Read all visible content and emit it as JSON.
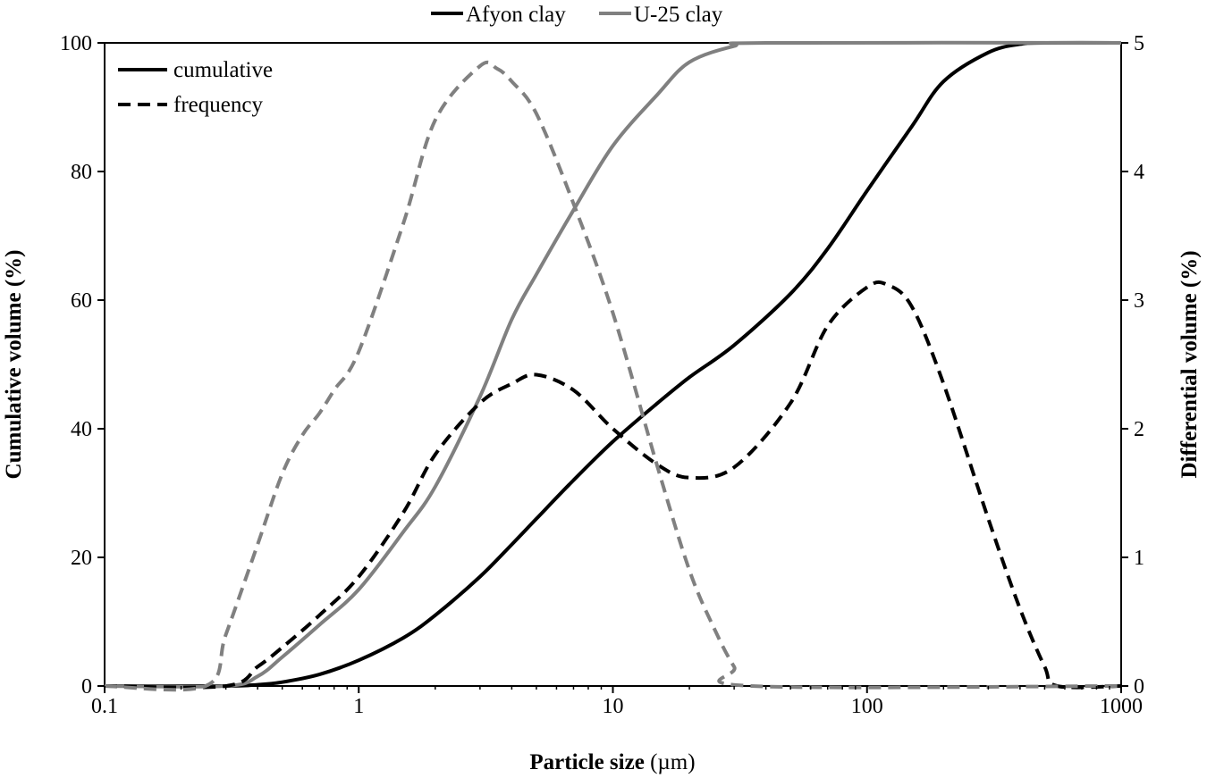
{
  "chart_data": {
    "type": "line",
    "xlabel": "Particle size",
    "xlabel_unit": "(µm)",
    "ylabel_left": "Cumulative volume (%)",
    "ylabel_right": "Differential volume (%)",
    "x_scale": "log",
    "xlim": [
      0.1,
      1000
    ],
    "ylim_left": [
      0,
      100
    ],
    "ylim_right": [
      0,
      5
    ],
    "x_ticks": [
      "0.1",
      "1",
      "10",
      "100",
      "1000"
    ],
    "y_left_ticks": [
      "0",
      "20",
      "40",
      "60",
      "80",
      "100"
    ],
    "y_right_ticks": [
      "0",
      "1",
      "2",
      "3",
      "4",
      "5"
    ],
    "grid": false,
    "legend_top": [
      {
        "label": "Afyon clay",
        "color": "#000000"
      },
      {
        "label": "U-25 clay",
        "color": "#808080"
      }
    ],
    "legend_style": [
      {
        "label": "cumulative",
        "dash": "solid"
      },
      {
        "label": "frequency",
        "dash": "dashed"
      }
    ],
    "series": [
      {
        "name": "Afyon clay",
        "kind": "cumulative",
        "axis": "left",
        "color": "#000000",
        "x": [
          0.1,
          0.3,
          0.4,
          0.5,
          0.7,
          1,
          1.5,
          2,
          3,
          4,
          5,
          7,
          10,
          15,
          20,
          30,
          50,
          70,
          100,
          150,
          200,
          300,
          400,
          500,
          1000
        ],
        "y": [
          0,
          0,
          0.2,
          0.6,
          1.8,
          4,
          7.5,
          11,
          17,
          22,
          26,
          32,
          38,
          44,
          48,
          53,
          61,
          68,
          77,
          87,
          94,
          98.5,
          99.8,
          100,
          100
        ]
      },
      {
        "name": "U-25 clay",
        "kind": "cumulative",
        "axis": "left",
        "color": "#808080",
        "x": [
          0.1,
          0.3,
          0.4,
          0.5,
          0.7,
          1,
          1.5,
          2,
          3,
          4,
          5,
          7,
          10,
          15,
          20,
          30,
          40,
          1000
        ],
        "y": [
          0,
          0,
          1.5,
          4.5,
          9.5,
          15,
          24,
          31,
          45,
          57,
          64,
          74,
          84,
          92,
          97,
          99.5,
          100,
          100
        ]
      },
      {
        "name": "Afyon clay",
        "kind": "frequency",
        "axis": "right",
        "color": "#000000",
        "x": [
          0.1,
          0.3,
          0.4,
          0.5,
          0.7,
          1,
          1.5,
          2,
          3,
          4,
          5,
          7,
          10,
          15,
          20,
          30,
          50,
          70,
          100,
          120,
          150,
          200,
          300,
          400,
          500,
          560,
          1000
        ],
        "y": [
          0,
          0,
          0.15,
          0.3,
          0.55,
          0.85,
          1.35,
          1.8,
          2.2,
          2.35,
          2.42,
          2.3,
          2.0,
          1.72,
          1.62,
          1.7,
          2.2,
          2.8,
          3.1,
          3.12,
          2.95,
          2.35,
          1.3,
          0.6,
          0.15,
          0,
          0
        ]
      },
      {
        "name": "U-25 clay",
        "kind": "frequency",
        "axis": "right",
        "color": "#808080",
        "x": [
          0.1,
          0.25,
          0.3,
          0.4,
          0.5,
          0.6,
          0.7,
          0.8,
          1,
          1.5,
          2,
          3,
          3.5,
          4,
          5,
          7,
          10,
          15,
          20,
          25,
          30,
          35,
          1000
        ],
        "y": [
          0,
          0,
          0.4,
          1.1,
          1.65,
          1.95,
          2.12,
          2.3,
          2.6,
          3.6,
          4.4,
          4.82,
          4.8,
          4.7,
          4.45,
          3.75,
          2.9,
          1.7,
          0.9,
          0.45,
          0.15,
          0,
          0
        ]
      }
    ]
  }
}
